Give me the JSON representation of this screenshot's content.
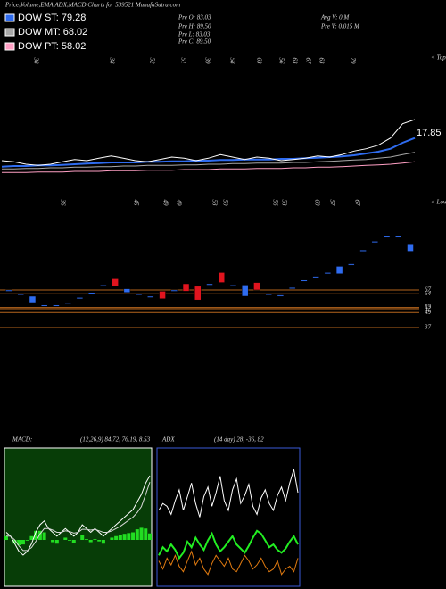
{
  "chart_data": [
    {
      "type": "line",
      "title": "Price,Volume,EMA,ADX,MACD Charts for 539521 MunafaSutra.com",
      "info": [
        "Pre  O: 83.03",
        "Pre  H: 89.50",
        "Pre  L: 83.03",
        "Pre  C: 89.50",
        "Avg V: 0  M",
        "Pre  V: 0.015 M"
      ],
      "price_label": "17.85",
      "marker_label": "< Tops",
      "marker_numbers": [
        38,
        38,
        52,
        51,
        39,
        58,
        63,
        56,
        63,
        67,
        63,
        79
      ],
      "ylim": [
        40,
        100
      ],
      "series": [
        {
          "name": "DOW ST: 79.28",
          "color": "#2f6cf0",
          "values": [
            50,
            50.5,
            50.5,
            51,
            51,
            51.5,
            52,
            52.5,
            53,
            53.5,
            53.5,
            53.5,
            54,
            54,
            54.5,
            54.5,
            55,
            55,
            55.5,
            55.5,
            56,
            56,
            56,
            56.5,
            56.5,
            57,
            57.5,
            58,
            58.5,
            59.5,
            61,
            62.5,
            65,
            70,
            74
          ]
        },
        {
          "name": "DOW MT: 68.02",
          "color": "#a8a8a8",
          "values": [
            48,
            48,
            48.5,
            48.5,
            49,
            49,
            49.5,
            49.5,
            50,
            50,
            50.5,
            50.5,
            51,
            51,
            51,
            51.5,
            51.5,
            52,
            52,
            52.5,
            52.5,
            53,
            53,
            53,
            53.5,
            53.5,
            54,
            54.5,
            55,
            55.5,
            56,
            57,
            58,
            60,
            62
          ]
        },
        {
          "name": "DOW PT: 58.02",
          "color": "#ff9fc4",
          "values": [
            45,
            45,
            45,
            45.5,
            45.5,
            45.5,
            46,
            46,
            46,
            46.5,
            46.5,
            46.5,
            47,
            47,
            47,
            47.5,
            47.5,
            47.5,
            48,
            48,
            48,
            48.5,
            48.5,
            48.5,
            49,
            49,
            49.5,
            49.5,
            50,
            50.5,
            51,
            51.5,
            52,
            53,
            54
          ]
        },
        {
          "color": "#ffffff",
          "values": [
            55,
            54,
            52,
            51,
            52,
            54,
            56,
            55,
            57,
            59,
            57,
            55,
            54,
            56,
            58,
            57,
            55,
            57,
            60,
            58,
            56,
            58,
            57,
            55,
            56,
            57,
            59,
            58,
            60,
            63,
            65,
            68,
            74,
            86,
            89.5
          ]
        }
      ]
    },
    {
      "type": "candlestick",
      "marker_label": "< Lows",
      "marker_numbers": [
        36,
        45,
        49,
        49,
        53,
        50,
        56,
        53,
        60,
        57,
        67
      ],
      "ylim": [
        30,
        120
      ],
      "levels": [
        67,
        64,
        53,
        52,
        49,
        37
      ],
      "open": [
        67,
        64,
        62,
        55,
        55,
        57,
        61,
        65,
        71,
        76,
        68,
        64,
        62,
        66,
        67,
        72,
        70,
        72,
        81,
        71,
        71,
        73,
        64,
        63,
        69,
        75,
        78,
        81,
        86,
        88,
        99,
        106,
        110,
        110,
        104
      ],
      "close": [
        66,
        63,
        57,
        54,
        54,
        56,
        60,
        64,
        70,
        70,
        65,
        63,
        61,
        60,
        66,
        66,
        59,
        71,
        73,
        70,
        62,
        67,
        63,
        62,
        68,
        74,
        77,
        80,
        80,
        87,
        98,
        105,
        109,
        109,
        98
      ],
      "colors": [
        "#2f6cf0",
        "#2f6cf0",
        "#2f6cf0",
        "#2f6cf0",
        "#2f6cf0",
        "#2f6cf0",
        "#2f6cf0",
        "#2f6cf0",
        "#2f6cf0",
        "#e0141e",
        "#2f6cf0",
        "#2f6cf0",
        "#2f6cf0",
        "#e0141e",
        "#2f6cf0",
        "#e0141e",
        "#e0141e",
        "#2f6cf0",
        "#e0141e",
        "#2f6cf0",
        "#2f6cf0",
        "#e0141e",
        "#2f6cf0",
        "#2f6cf0",
        "#2f6cf0",
        "#2f6cf0",
        "#2f6cf0",
        "#2f6cf0",
        "#2f6cf0",
        "#2f6cf0",
        "#2f6cf0",
        "#2f6cf0",
        "#2f6cf0",
        "#2f6cf0",
        "#2f6cf0"
      ]
    },
    {
      "type": "macd",
      "title": "MACD:",
      "subtitle": "(12,26,9) 84.72, 76.19, 8.53",
      "ylim": [
        -60,
        120
      ],
      "series": [
        {
          "color": "#ffffff",
          "values": [
            10,
            5,
            -5,
            -15,
            -20,
            -15,
            -5,
            10,
            20,
            25,
            15,
            10,
            5,
            10,
            15,
            10,
            5,
            10,
            20,
            15,
            10,
            15,
            10,
            5,
            10,
            15,
            20,
            25,
            30,
            35,
            40,
            50,
            60,
            75,
            84.72
          ]
        },
        {
          "color": "#d8d8d8",
          "values": [
            5,
            5,
            0,
            -8,
            -14,
            -14,
            -10,
            -2,
            8,
            15,
            15,
            13,
            10,
            10,
            12,
            11,
            9,
            10,
            14,
            14,
            13,
            14,
            12,
            10,
            10,
            12,
            15,
            18,
            22,
            26,
            30,
            36,
            44,
            60,
            76.19
          ]
        }
      ],
      "histogram": {
        "color": "#22dd22",
        "values": [
          5,
          0,
          -5,
          -7,
          -6,
          -1,
          5,
          12,
          12,
          10,
          0,
          -3,
          -5,
          0,
          3,
          -1,
          -4,
          0,
          6,
          1,
          -3,
          1,
          -2,
          -5,
          0,
          3,
          5,
          7,
          8,
          9,
          10,
          14,
          16,
          15,
          8.53
        ]
      }
    },
    {
      "type": "adx",
      "title": "ADX",
      "subtitle": "(14 day) 28, -36, 82",
      "ylim": [
        0,
        100
      ],
      "series": [
        {
          "color": "#ffffff",
          "values": [
            55,
            60,
            58,
            52,
            62,
            70,
            55,
            65,
            75,
            60,
            50,
            65,
            72,
            58,
            68,
            80,
            62,
            55,
            70,
            78,
            60,
            66,
            74,
            58,
            52,
            64,
            70,
            60,
            55,
            66,
            72,
            62,
            75,
            85,
            68
          ]
        },
        {
          "color": "#22ee22",
          "values": [
            22,
            28,
            25,
            30,
            26,
            20,
            24,
            32,
            28,
            35,
            30,
            26,
            33,
            38,
            30,
            25,
            28,
            32,
            36,
            30,
            27,
            24,
            29,
            35,
            40,
            38,
            33,
            28,
            30,
            26,
            24,
            27,
            32,
            36,
            30
          ]
        },
        {
          "color": "#e07a10",
          "values": [
            18,
            12,
            20,
            15,
            22,
            14,
            10,
            18,
            25,
            15,
            20,
            12,
            8,
            16,
            22,
            18,
            14,
            20,
            12,
            10,
            16,
            22,
            18,
            12,
            15,
            20,
            14,
            10,
            12,
            18,
            8,
            12,
            14,
            10,
            20
          ]
        }
      ]
    }
  ]
}
